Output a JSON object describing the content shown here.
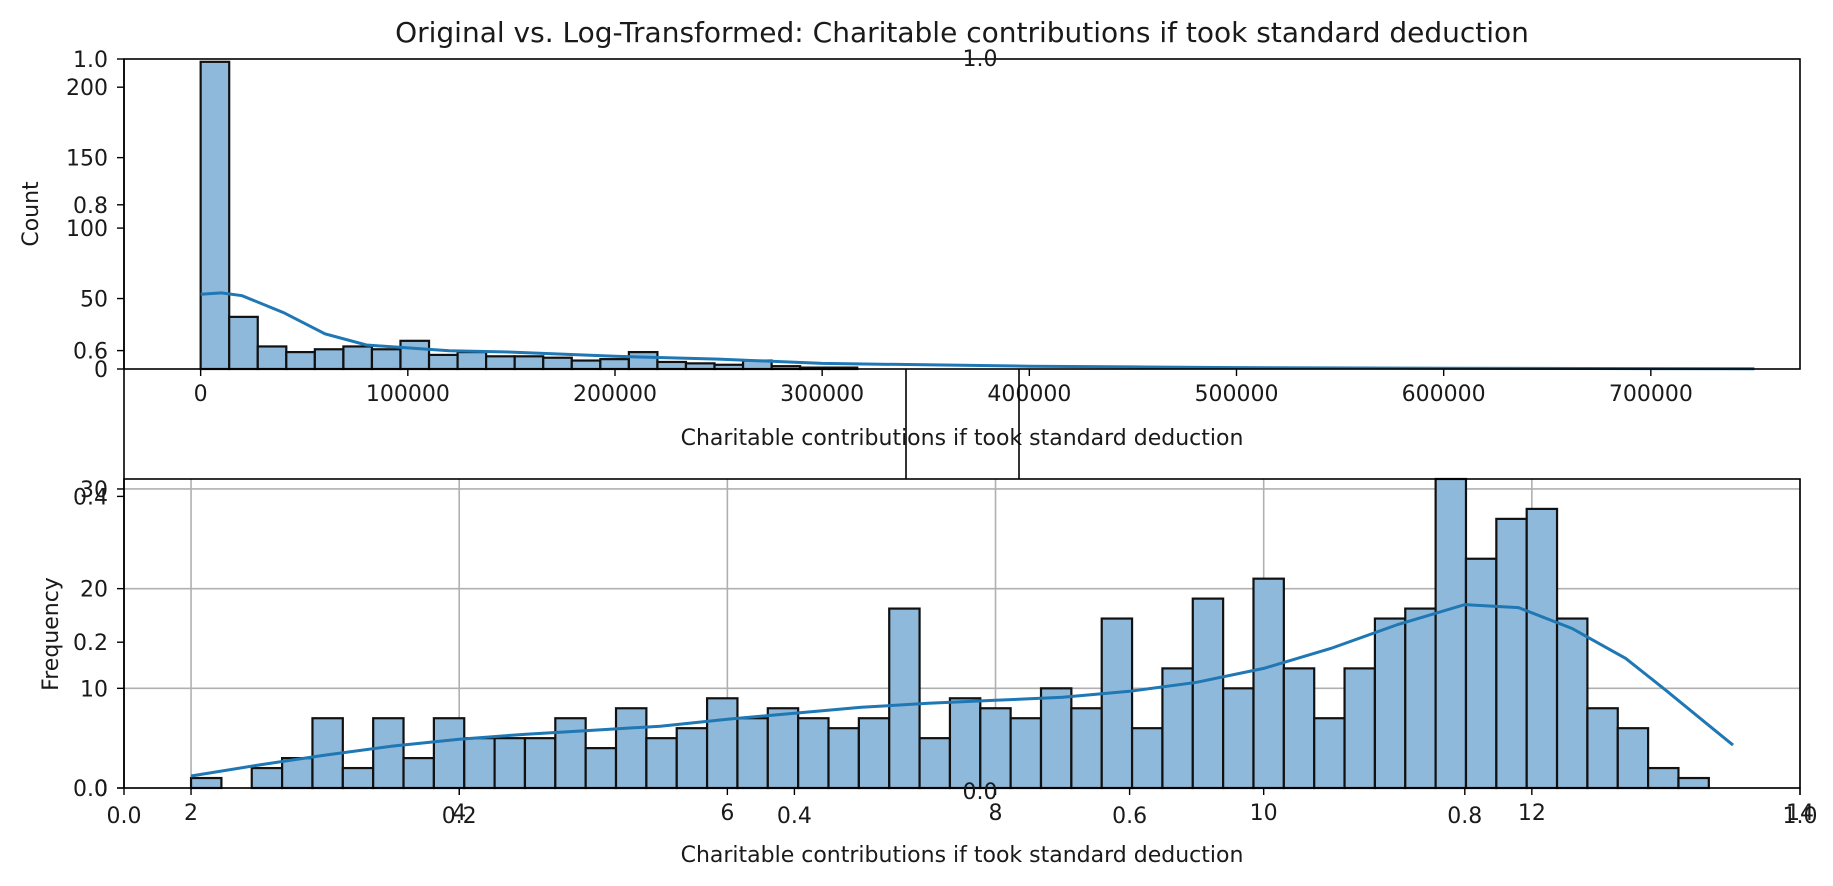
{
  "figure": {
    "title": "Original vs. Log-Transformed: Charitable contributions if took standard deduction"
  },
  "colors": {
    "bar_fill": "#8fb9da",
    "kde_line": "#1f77b4",
    "grid": "#b0b0b0"
  },
  "chart_data": [
    {
      "type": "bar",
      "subtype": "histogram_with_kde",
      "xlabel": "Charitable contributions if took standard deduction",
      "ylabel": "Count",
      "xlim": [
        -37000,
        772000
      ],
      "ylim": [
        0,
        220
      ],
      "x_ticks": [
        0,
        100000,
        200000,
        300000,
        400000,
        500000,
        600000,
        700000
      ],
      "x_tick_labels": [
        "0",
        "100000",
        "200000",
        "300000",
        "400000",
        "500000",
        "600000",
        "700000"
      ],
      "y_ticks": [
        0,
        50,
        100,
        150,
        200
      ],
      "y_tick_labels": [
        "0",
        "50",
        "100",
        "150",
        "200"
      ],
      "grid": false,
      "bin_start": 0,
      "bin_width": 13780,
      "values": [
        218,
        37,
        16,
        12,
        14,
        16,
        14,
        20,
        10,
        12,
        9,
        9,
        8,
        6,
        7,
        12,
        5,
        4,
        3,
        6,
        2,
        1,
        1,
        0,
        0,
        0,
        0,
        0,
        0,
        0,
        0,
        0,
        0,
        0,
        0,
        0,
        0,
        0,
        0,
        0,
        0,
        0,
        0,
        0,
        0,
        0,
        0,
        0,
        0,
        0,
        0,
        0,
        0,
        0
      ],
      "kde": {
        "x": [
          0,
          10000,
          20000,
          40000,
          60000,
          80000,
          100000,
          120000,
          150000,
          200000,
          250000,
          300000,
          350000,
          400000,
          450000,
          500000,
          600000,
          700000,
          750000
        ],
        "y": [
          53,
          54,
          52,
          40,
          25,
          17,
          15,
          13,
          12,
          9,
          7,
          4,
          3,
          2,
          1.5,
          1,
          0.5,
          0.3,
          0.2
        ]
      }
    },
    {
      "type": "bar",
      "subtype": "histogram_with_kde",
      "xlabel": "Charitable contributions if took standard deduction",
      "ylabel": "Frequency",
      "xlim": [
        1.5,
        14.0
      ],
      "ylim": [
        0,
        31
      ],
      "x_ticks": [
        2,
        4,
        6,
        8,
        10,
        12,
        14
      ],
      "x_tick_labels": [
        "2",
        "4",
        "6",
        "8",
        "10",
        "12",
        "14"
      ],
      "y_ticks": [
        0,
        10,
        20,
        30
      ],
      "y_tick_labels": [
        "0",
        "10",
        "20",
        "30"
      ],
      "grid": true,
      "bin_start": 2.0,
      "bin_width": 0.2264,
      "values": [
        1,
        0,
        2,
        3,
        7,
        2,
        7,
        3,
        7,
        5,
        5,
        5,
        7,
        4,
        8,
        5,
        6,
        9,
        7,
        8,
        7,
        6,
        7,
        18,
        5,
        9,
        8,
        7,
        10,
        8,
        17,
        6,
        12,
        19,
        10,
        21,
        12,
        7,
        12,
        17,
        18,
        31,
        23,
        27,
        28,
        17,
        8,
        6,
        2,
        1
      ],
      "kde": {
        "x": [
          2.0,
          2.5,
          3.0,
          3.5,
          4.0,
          4.5,
          5.0,
          5.5,
          6.0,
          6.5,
          7.0,
          7.5,
          8.0,
          8.5,
          9.0,
          9.5,
          10.0,
          10.5,
          11.0,
          11.5,
          11.9,
          12.3,
          12.7,
          13.0,
          13.3,
          13.5
        ],
        "y": [
          1.2,
          2.3,
          3.3,
          4.2,
          4.9,
          5.4,
          5.8,
          6.2,
          6.9,
          7.5,
          8.1,
          8.5,
          8.8,
          9.1,
          9.7,
          10.6,
          12.0,
          14.0,
          16.4,
          18.4,
          18.1,
          16.0,
          13.0,
          9.8,
          6.5,
          4.3
        ]
      }
    },
    {
      "type": "overlay_axes",
      "note_labels": [
        "1.0",
        "0.8",
        "0.6",
        "0.4",
        "0.2",
        "0.0"
      ],
      "left_ticks": [
        1.0,
        0.8,
        0.6,
        0.4,
        0.2,
        0.0
      ],
      "bottom_ticks": [
        0.0,
        0.2,
        0.4,
        0.6,
        0.8,
        1.0
      ],
      "xlim": [
        0,
        1
      ],
      "ylim": [
        0,
        1
      ]
    }
  ]
}
